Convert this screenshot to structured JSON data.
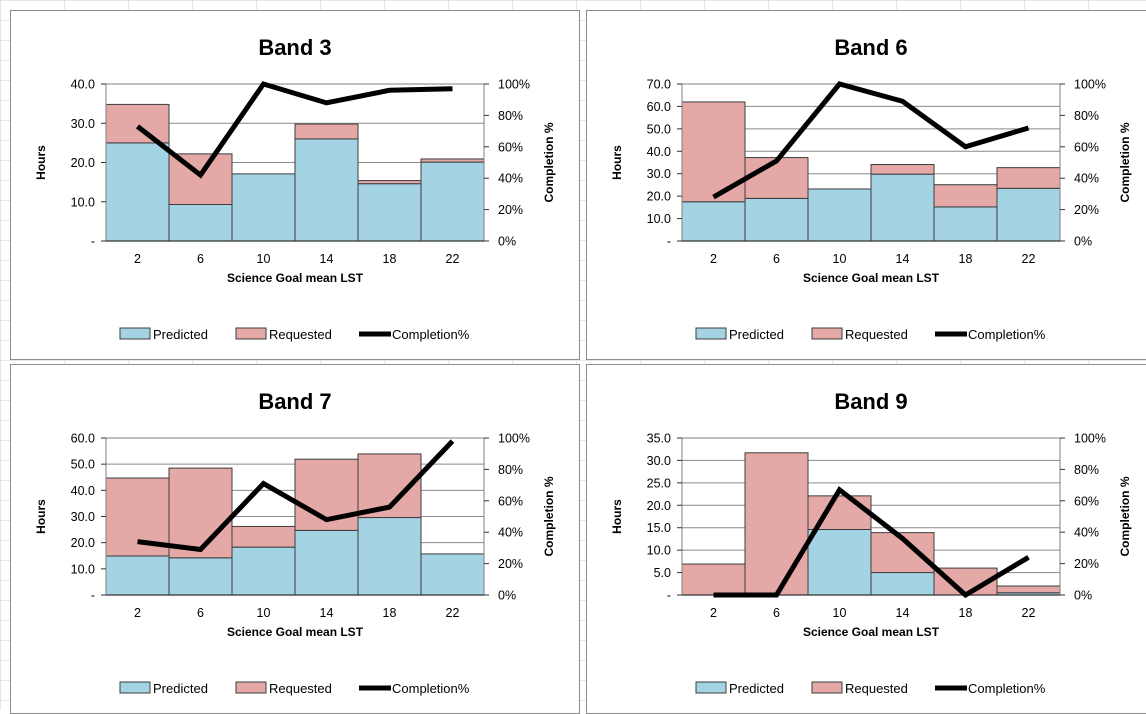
{
  "colors": {
    "predicted": "#a4d4e4",
    "requested": "#e4a8a6",
    "completion_line": "#000000",
    "bar_stroke": "#3c3c3c",
    "gridline": "#8a8a8a"
  },
  "chart_data": [
    {
      "type": "bar",
      "title": "Band 3",
      "xlabel": "Science Goal mean LST",
      "ylabel": "Hours",
      "y2label": "Completion %",
      "categories": [
        "2",
        "6",
        "10",
        "14",
        "18",
        "22"
      ],
      "ylim": [
        0,
        40
      ],
      "y_ticks": [
        "-",
        "10.0",
        "20.0",
        "30.0",
        "40.0"
      ],
      "y2lim": [
        0,
        100
      ],
      "y2_ticks": [
        "0%",
        "20%",
        "40%",
        "60%",
        "80%",
        "100%"
      ],
      "stacked": true,
      "series": [
        {
          "name": "Predicted",
          "kind": "bar",
          "values": [
            25.0,
            9.3,
            17.1,
            26.0,
            14.6,
            20.1
          ]
        },
        {
          "name": "Requested",
          "kind": "bar",
          "values": [
            9.8,
            12.9,
            0.0,
            3.8,
            0.8,
            0.8
          ]
        },
        {
          "name": "Completion%",
          "kind": "line",
          "axis": "y2",
          "values": [
            73,
            42,
            100,
            88,
            96,
            97
          ]
        }
      ],
      "legend": "bottom",
      "grid": true
    },
    {
      "type": "bar",
      "title": "Band 6",
      "xlabel": "Science Goal mean LST",
      "ylabel": "Hours",
      "y2label": "Completion %",
      "categories": [
        "2",
        "6",
        "10",
        "14",
        "18",
        "22"
      ],
      "ylim": [
        0,
        70
      ],
      "y_ticks": [
        "-",
        "10.0",
        "20.0",
        "30.0",
        "40.0",
        "50.0",
        "60.0",
        "70.0"
      ],
      "y2lim": [
        0,
        100
      ],
      "y2_ticks": [
        "0%",
        "20%",
        "40%",
        "60%",
        "80%",
        "100%"
      ],
      "stacked": true,
      "series": [
        {
          "name": "Predicted",
          "kind": "bar",
          "values": [
            17.5,
            19.0,
            23.2,
            29.8,
            15.2,
            23.5
          ]
        },
        {
          "name": "Requested",
          "kind": "bar",
          "values": [
            44.5,
            18.2,
            0.0,
            4.3,
            9.9,
            9.2
          ]
        },
        {
          "name": "Completion%",
          "kind": "line",
          "axis": "y2",
          "values": [
            28,
            51,
            100,
            89,
            60,
            72
          ]
        }
      ],
      "legend": "bottom",
      "grid": true
    },
    {
      "type": "bar",
      "title": "Band 7",
      "xlabel": "Science Goal mean LST",
      "ylabel": "Hours",
      "y2label": "Completion %",
      "categories": [
        "2",
        "6",
        "10",
        "14",
        "18",
        "22"
      ],
      "ylim": [
        0,
        60
      ],
      "y_ticks": [
        "-",
        "10.0",
        "20.0",
        "30.0",
        "40.0",
        "50.0",
        "60.0"
      ],
      "y2lim": [
        0,
        100
      ],
      "y2_ticks": [
        "0%",
        "20%",
        "40%",
        "60%",
        "80%",
        "100%"
      ],
      "stacked": true,
      "series": [
        {
          "name": "Predicted",
          "kind": "bar",
          "values": [
            14.9,
            14.2,
            18.3,
            24.7,
            29.6,
            15.7
          ]
        },
        {
          "name": "Requested",
          "kind": "bar",
          "values": [
            29.8,
            34.3,
            7.9,
            27.2,
            24.3,
            0.0
          ]
        },
        {
          "name": "Completion%",
          "kind": "line",
          "axis": "y2",
          "values": [
            34,
            29,
            71,
            48,
            56,
            98
          ]
        }
      ],
      "legend": "bottom",
      "grid": true
    },
    {
      "type": "bar",
      "title": "Band 9",
      "xlabel": "Science Goal mean LST",
      "ylabel": "Hours",
      "y2label": "Completion %",
      "categories": [
        "2",
        "6",
        "10",
        "14",
        "18",
        "22"
      ],
      "ylim": [
        0,
        35
      ],
      "y_ticks": [
        "-",
        "5.0",
        "10.0",
        "15.0",
        "20.0",
        "25.0",
        "30.0",
        "35.0"
      ],
      "y2lim": [
        0,
        100
      ],
      "y2_ticks": [
        "0%",
        "20%",
        "40%",
        "60%",
        "80%",
        "100%"
      ],
      "stacked": true,
      "series": [
        {
          "name": "Predicted",
          "kind": "bar",
          "values": [
            0.0,
            0.0,
            14.6,
            5.0,
            0.0,
            0.5
          ]
        },
        {
          "name": "Requested",
          "kind": "bar",
          "values": [
            6.9,
            31.7,
            7.5,
            8.9,
            6.0,
            1.5
          ]
        },
        {
          "name": "Completion%",
          "kind": "line",
          "axis": "y2",
          "values": [
            0,
            0,
            67,
            36,
            0,
            24
          ]
        }
      ],
      "legend": "bottom",
      "grid": true
    }
  ]
}
